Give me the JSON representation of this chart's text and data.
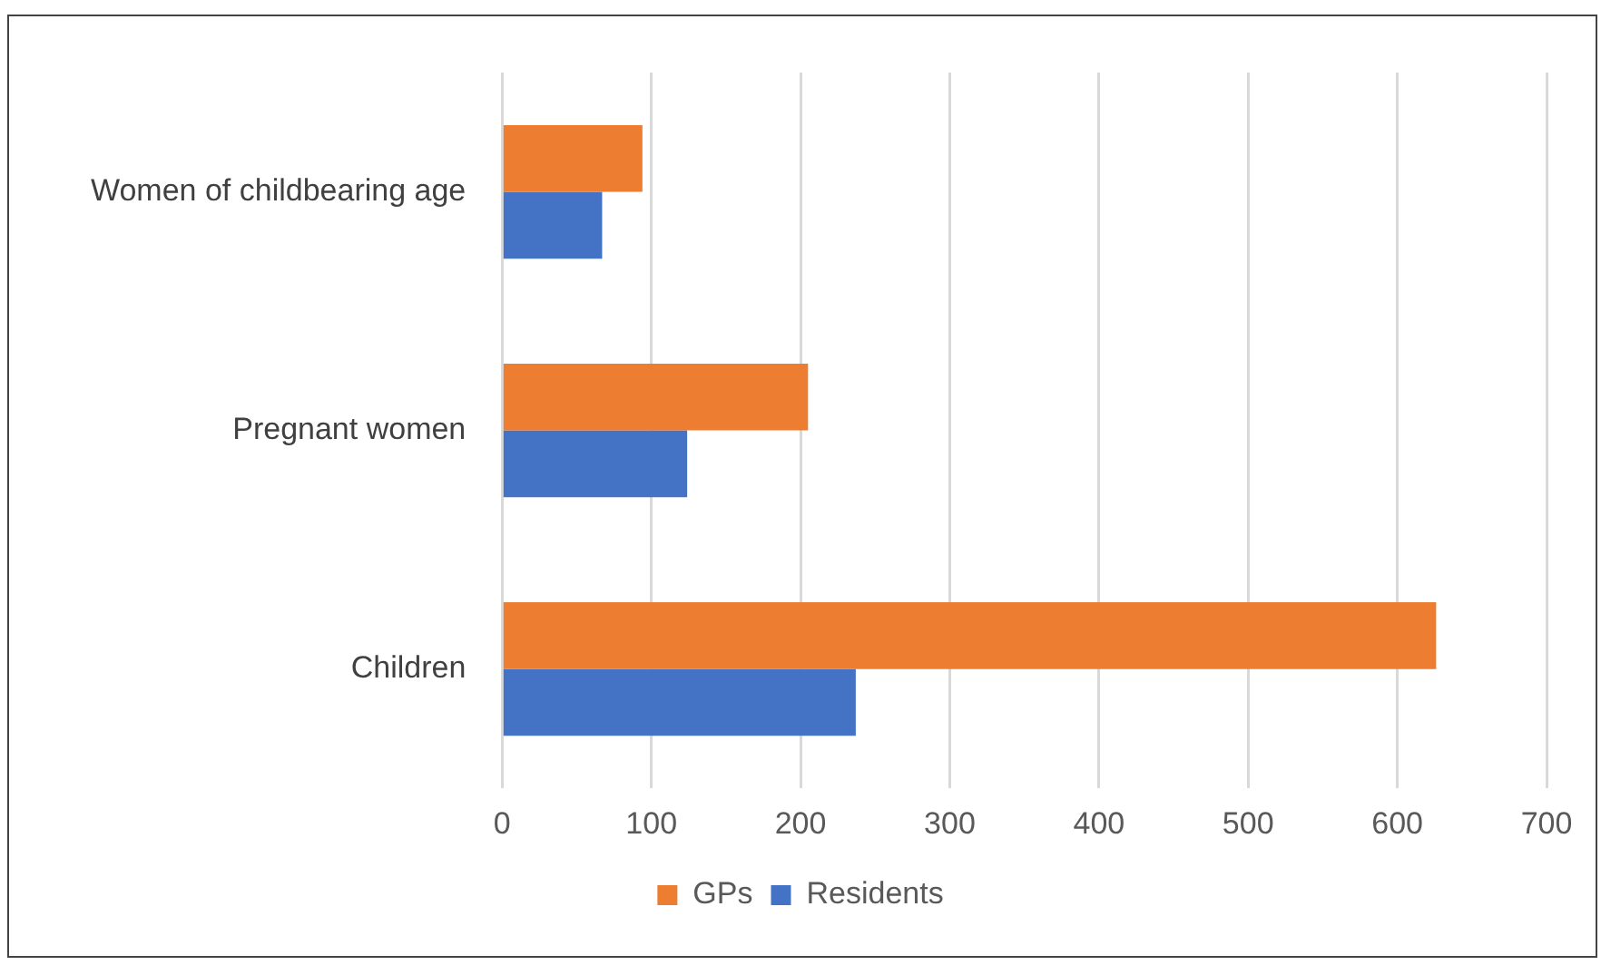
{
  "chart_data": {
    "type": "bar",
    "orientation": "horizontal",
    "categories": [
      "Women of childbearing age",
      "Pregnant women",
      "Children"
    ],
    "series": [
      {
        "name": "GPs",
        "color": "#ed7d31",
        "values": [
          94,
          205,
          626
        ]
      },
      {
        "name": "Residents",
        "color": "#4472c4",
        "values": [
          67,
          124,
          237
        ]
      }
    ],
    "xlim": [
      0,
      700
    ],
    "xticks": [
      0,
      100,
      200,
      300,
      400,
      500,
      600,
      700
    ],
    "grid": "x",
    "legend": "bottom"
  }
}
